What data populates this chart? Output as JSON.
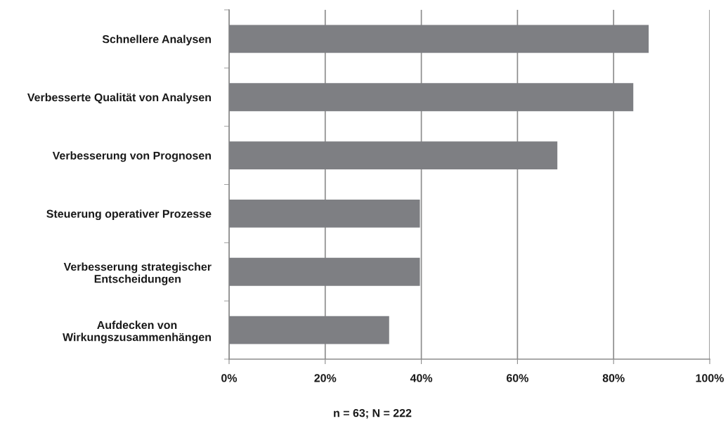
{
  "chart_data": {
    "type": "bar",
    "orientation": "horizontal",
    "categories": [
      "Schnellere Analysen",
      "Verbesserte Qualität von Analysen",
      "Verbesserung von Prognosen",
      "Steuerung operativer Prozesse",
      "Verbesserung strategischer\nEntscheidungen",
      "Aufdecken von\nWirkungszusammenhängen"
    ],
    "values": [
      87.3,
      84.1,
      68.3,
      39.7,
      39.7,
      33.3
    ],
    "color": "#7e7f83",
    "xlim": [
      0,
      100
    ],
    "xticks": [
      {
        "value": 0,
        "label": "0%"
      },
      {
        "value": 20,
        "label": "20%"
      },
      {
        "value": 40,
        "label": "40%"
      },
      {
        "value": 60,
        "label": "60%"
      },
      {
        "value": 80,
        "label": "80%"
      },
      {
        "value": 100,
        "label": "100%"
      }
    ],
    "grid": "x",
    "annotations": [
      "n = 63; N = 222"
    ]
  }
}
